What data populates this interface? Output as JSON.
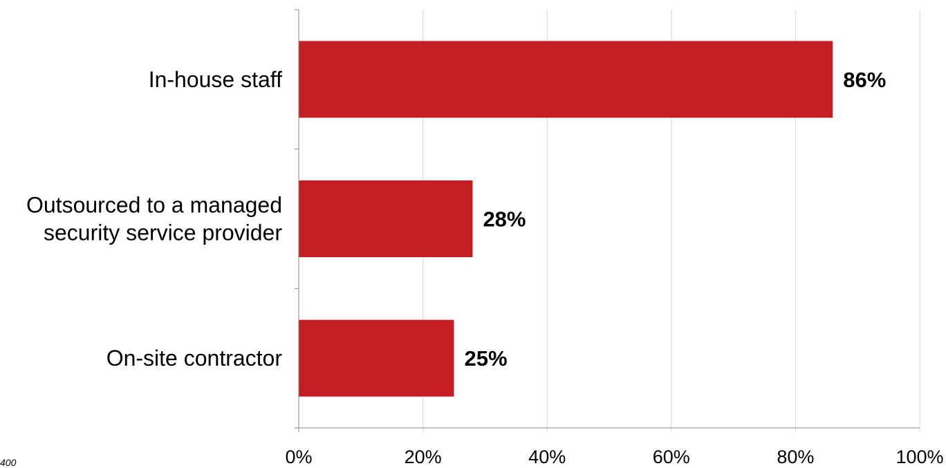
{
  "chart_data": {
    "type": "bar",
    "orientation": "horizontal",
    "categories": [
      [
        "In-house staff"
      ],
      [
        "Outsourced to a managed",
        "security service provider"
      ],
      [
        "On-site contractor"
      ]
    ],
    "values": [
      86,
      28,
      25
    ],
    "data_labels": [
      "86%",
      "28%",
      "25%"
    ],
    "xlim": [
      0,
      100
    ],
    "xticks": [
      0,
      20,
      40,
      60,
      80,
      100
    ],
    "xtick_labels": [
      "0%",
      "20%",
      "40%",
      "60%",
      "80%",
      "100%"
    ],
    "grid": true,
    "legend": "none",
    "bar_color": "#c41e25",
    "grid_color": "#d9d9d9",
    "axis_color": "#868686"
  },
  "footnote": "400"
}
